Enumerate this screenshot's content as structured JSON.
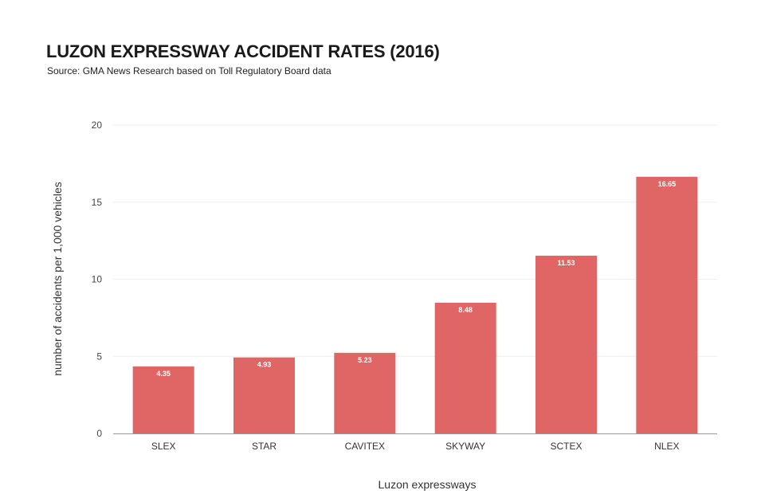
{
  "colors": {
    "bar": "#e06666",
    "grid": "#eeeeee",
    "baseline": "#999999"
  },
  "chart_data": {
    "type": "bar",
    "title": "LUZON EXPRESSWAY ACCIDENT RATES (2016)",
    "subtitle": "Source: GMA News Research based on Toll Regulatory Board data",
    "xlabel": "Luzon expressways",
    "ylabel": "number of accidents per 1,000 vehicles",
    "categories": [
      "SLEX",
      "STAR",
      "CAVITEX",
      "SKYWAY",
      "SCTEX",
      "NLEX"
    ],
    "values": [
      4.35,
      4.93,
      5.23,
      8.48,
      11.53,
      16.65
    ],
    "data_labels": [
      "4.35",
      "4.93",
      "5.23",
      "8.48",
      "11.53",
      "16.65"
    ],
    "ylim": [
      0,
      20
    ],
    "yticks": [
      0,
      5,
      10,
      15,
      20
    ],
    "grid": true,
    "legend": "none"
  }
}
